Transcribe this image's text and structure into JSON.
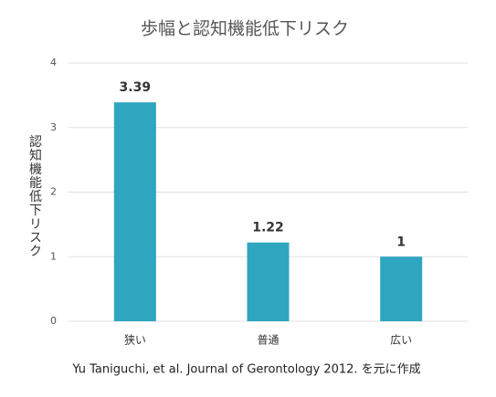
{
  "chart_data": {
    "type": "bar",
    "title": "歩幅と認知機能低下リスク",
    "y_label": "認知機能低下リスク",
    "categories": [
      "狭い",
      "普通",
      "広い"
    ],
    "values": [
      3.39,
      1.22,
      1
    ],
    "color": "#2ea6c0",
    "ylim": [
      0,
      4
    ],
    "yticks": [
      0,
      1,
      2,
      3,
      4
    ],
    "grid": true,
    "source": "Yu Taniguchi, et al. Journal of Gerontology 2012. を元に作成"
  }
}
